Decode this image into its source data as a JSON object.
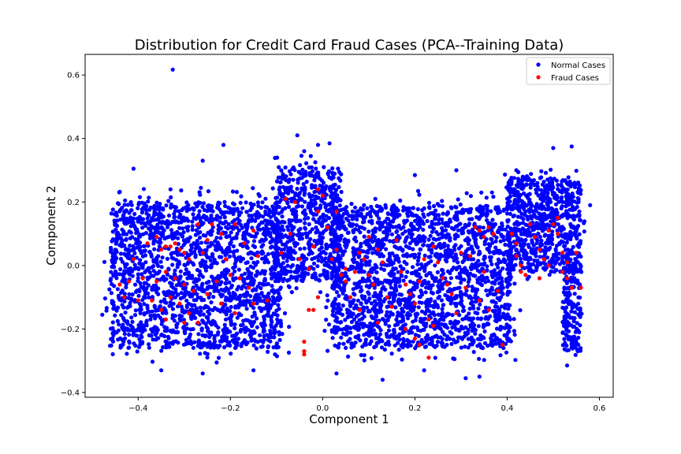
{
  "chart_data": {
    "type": "scatter",
    "title": "Distribution for Credit Card Fraud Cases (PCA--Training Data)",
    "xlabel": "Component 1",
    "ylabel": "Component 2",
    "xlim": [
      -0.515,
      0.63
    ],
    "ylim": [
      -0.415,
      0.665
    ],
    "xticks": [
      -0.4,
      -0.2,
      0.0,
      0.2,
      0.4,
      0.6
    ],
    "xtick_labels": [
      "−0.4",
      "−0.2",
      "0.0",
      "0.2",
      "0.4",
      "0.6"
    ],
    "yticks": [
      -0.4,
      -0.2,
      0.0,
      0.2,
      0.4,
      0.6
    ],
    "ytick_labels": [
      "−0.4",
      "−0.2",
      "0.0",
      "0.2",
      "0.4",
      "0.6"
    ],
    "grid": false,
    "legend_position": "top-right",
    "series": [
      {
        "name": "Normal Cases",
        "color": "#0000ff",
        "clusters": [
          {
            "x": [
              -0.46,
              -0.09
            ],
            "y": [
              -0.26,
              0.2
            ],
            "n": 1700
          },
          {
            "x": [
              -0.1,
              0.04
            ],
            "y": [
              -0.05,
              0.31
            ],
            "n": 550
          },
          {
            "x": [
              0.02,
              0.41
            ],
            "y": [
              -0.26,
              0.19
            ],
            "n": 1800
          },
          {
            "x": [
              0.4,
              0.56
            ],
            "y": [
              -0.02,
              0.28
            ],
            "n": 650
          },
          {
            "x": [
              0.52,
              0.56
            ],
            "y": [
              -0.27,
              0.0
            ],
            "n": 150
          }
        ],
        "outliers": [
          {
            "x": -0.325,
            "y": 0.617
          },
          {
            "x": -0.41,
            "y": 0.305
          },
          {
            "x": -0.215,
            "y": 0.38
          },
          {
            "x": -0.26,
            "y": 0.33
          },
          {
            "x": -0.055,
            "y": 0.41
          },
          {
            "x": 0.015,
            "y": 0.385
          },
          {
            "x": -0.01,
            "y": 0.38
          },
          {
            "x": -0.04,
            "y": 0.36
          },
          {
            "x": 0.54,
            "y": 0.375
          },
          {
            "x": 0.58,
            "y": 0.19
          },
          {
            "x": 0.5,
            "y": 0.37
          },
          {
            "x": -0.43,
            "y": 0.17
          },
          {
            "x": -0.35,
            "y": -0.33
          },
          {
            "x": -0.26,
            "y": -0.34
          },
          {
            "x": 0.13,
            "y": -0.36
          },
          {
            "x": 0.31,
            "y": -0.355
          },
          {
            "x": 0.34,
            "y": -0.35
          },
          {
            "x": 0.53,
            "y": -0.315
          },
          {
            "x": 0.03,
            "y": -0.34
          },
          {
            "x": -0.33,
            "y": 0.24
          },
          {
            "x": -0.15,
            "y": -0.33
          },
          {
            "x": 0.22,
            "y": -0.33
          },
          {
            "x": 0.42,
            "y": 0.3
          },
          {
            "x": 0.29,
            "y": 0.3
          },
          {
            "x": 0.2,
            "y": 0.285
          }
        ]
      },
      {
        "name": "Fraud Cases",
        "color": "#ff0000",
        "points": [
          [
            -0.41,
            0.02
          ],
          [
            -0.42,
            -0.05
          ],
          [
            -0.4,
            -0.11
          ],
          [
            -0.38,
            0.07
          ],
          [
            -0.36,
            0.09
          ],
          [
            -0.35,
            0.05
          ],
          [
            -0.34,
            0.06
          ],
          [
            -0.33,
            0.06
          ],
          [
            -0.32,
            0.07
          ],
          [
            -0.31,
            0.05
          ],
          [
            -0.3,
            0.04
          ],
          [
            -0.29,
            0.02
          ],
          [
            -0.34,
            -0.02
          ],
          [
            -0.32,
            -0.04
          ],
          [
            -0.3,
            -0.06
          ],
          [
            -0.28,
            -0.08
          ],
          [
            -0.33,
            -0.1
          ],
          [
            -0.31,
            -0.12
          ],
          [
            -0.35,
            -0.14
          ],
          [
            -0.29,
            -0.15
          ],
          [
            -0.27,
            -0.18
          ],
          [
            -0.3,
            -0.18
          ],
          [
            -0.34,
            -0.17
          ],
          [
            -0.37,
            -0.11
          ],
          [
            -0.39,
            -0.04
          ],
          [
            -0.36,
            -0.05
          ],
          [
            -0.26,
            0.04
          ],
          [
            -0.25,
            0.08
          ],
          [
            -0.24,
            0.13
          ],
          [
            -0.22,
            0.1
          ],
          [
            -0.21,
            0.02
          ],
          [
            -0.2,
            -0.03
          ],
          [
            -0.23,
            -0.05
          ],
          [
            -0.25,
            -0.09
          ],
          [
            -0.22,
            -0.12
          ],
          [
            -0.19,
            -0.15
          ],
          [
            -0.18,
            -0.04
          ],
          [
            -0.17,
            0.07
          ],
          [
            -0.15,
            0.11
          ],
          [
            -0.14,
            0.03
          ],
          [
            -0.16,
            -0.07
          ],
          [
            -0.12,
            -0.11
          ],
          [
            -0.27,
            0.13
          ],
          [
            -0.19,
            0.13
          ],
          [
            -0.15,
            -0.12
          ],
          [
            -0.08,
            0.21
          ],
          [
            -0.07,
            0.1
          ],
          [
            -0.05,
            0.02
          ],
          [
            -0.03,
            -0.01
          ],
          [
            -0.02,
            0.06
          ],
          [
            -0.01,
            0.17
          ],
          [
            0.0,
            0.22
          ],
          [
            -0.01,
            0.24
          ],
          [
            0.01,
            0.12
          ],
          [
            -0.02,
            -0.14
          ],
          [
            -0.04,
            -0.24
          ],
          [
            -0.04,
            -0.28
          ],
          [
            -0.04,
            -0.27
          ],
          [
            -0.03,
            -0.14
          ],
          [
            -0.01,
            -0.1
          ],
          [
            0.02,
            0.02
          ],
          [
            0.03,
            0.05
          ],
          [
            0.05,
            -0.01
          ],
          [
            0.04,
            -0.03
          ],
          [
            0.05,
            -0.05
          ],
          [
            0.07,
            -0.02
          ],
          [
            0.08,
            0.04
          ],
          [
            0.09,
            0.02
          ],
          [
            0.1,
            -0.03
          ],
          [
            0.11,
            -0.06
          ],
          [
            0.12,
            0.05
          ],
          [
            0.13,
            0.01
          ],
          [
            0.14,
            -0.1
          ],
          [
            0.15,
            -0.13
          ],
          [
            0.16,
            0.08
          ],
          [
            0.17,
            -0.02
          ],
          [
            0.18,
            -0.06
          ],
          [
            0.19,
            -0.09
          ],
          [
            0.2,
            -0.12
          ],
          [
            0.21,
            -0.05
          ],
          [
            0.22,
            0.02
          ],
          [
            0.23,
            -0.17
          ],
          [
            0.24,
            -0.19
          ],
          [
            0.25,
            0.01
          ],
          [
            0.26,
            -0.04
          ],
          [
            0.27,
            -0.06
          ],
          [
            0.28,
            -0.09
          ],
          [
            0.29,
            -0.15
          ],
          [
            0.3,
            0.04
          ],
          [
            0.31,
            -0.07
          ],
          [
            0.32,
            0.03
          ],
          [
            0.33,
            0.12
          ],
          [
            0.34,
            0.11
          ],
          [
            0.35,
            0.09
          ],
          [
            0.36,
            0.12
          ],
          [
            0.37,
            0.1
          ],
          [
            0.35,
            -0.02
          ],
          [
            0.34,
            -0.11
          ],
          [
            0.36,
            -0.14
          ],
          [
            0.38,
            -0.08
          ],
          [
            0.39,
            -0.25
          ],
          [
            0.12,
            -0.18
          ],
          [
            0.18,
            -0.2
          ],
          [
            0.2,
            -0.23
          ],
          [
            0.21,
            -0.25
          ],
          [
            0.23,
            -0.29
          ],
          [
            0.08,
            -0.14
          ],
          [
            0.06,
            -0.1
          ],
          [
            0.1,
            0.09
          ],
          [
            0.24,
            0.06
          ],
          [
            0.41,
            0.1
          ],
          [
            0.42,
            0.07
          ],
          [
            0.42,
            0.03
          ],
          [
            0.43,
            0.0
          ],
          [
            0.43,
            -0.02
          ],
          [
            0.44,
            -0.03
          ],
          [
            0.45,
            0.13
          ],
          [
            0.46,
            0.09
          ],
          [
            0.47,
            0.05
          ],
          [
            0.48,
            0.02
          ],
          [
            0.49,
            0.0
          ],
          [
            0.5,
            0.13
          ],
          [
            0.51,
            0.1
          ],
          [
            0.52,
            0.04
          ],
          [
            0.52,
            -0.02
          ],
          [
            0.53,
            -0.04
          ],
          [
            0.54,
            -0.07
          ],
          [
            0.53,
            0.01
          ],
          [
            0.55,
            0.04
          ],
          [
            0.56,
            -0.07
          ],
          [
            0.51,
            0.15
          ],
          [
            0.49,
            0.11
          ],
          [
            0.47,
            -0.04
          ],
          [
            -0.06,
            0.2
          ],
          [
            -0.09,
            0.04
          ],
          [
            0.03,
            0.17
          ],
          [
            -0.44,
            -0.06
          ],
          [
            -0.43,
            -0.1
          ]
        ]
      }
    ]
  }
}
